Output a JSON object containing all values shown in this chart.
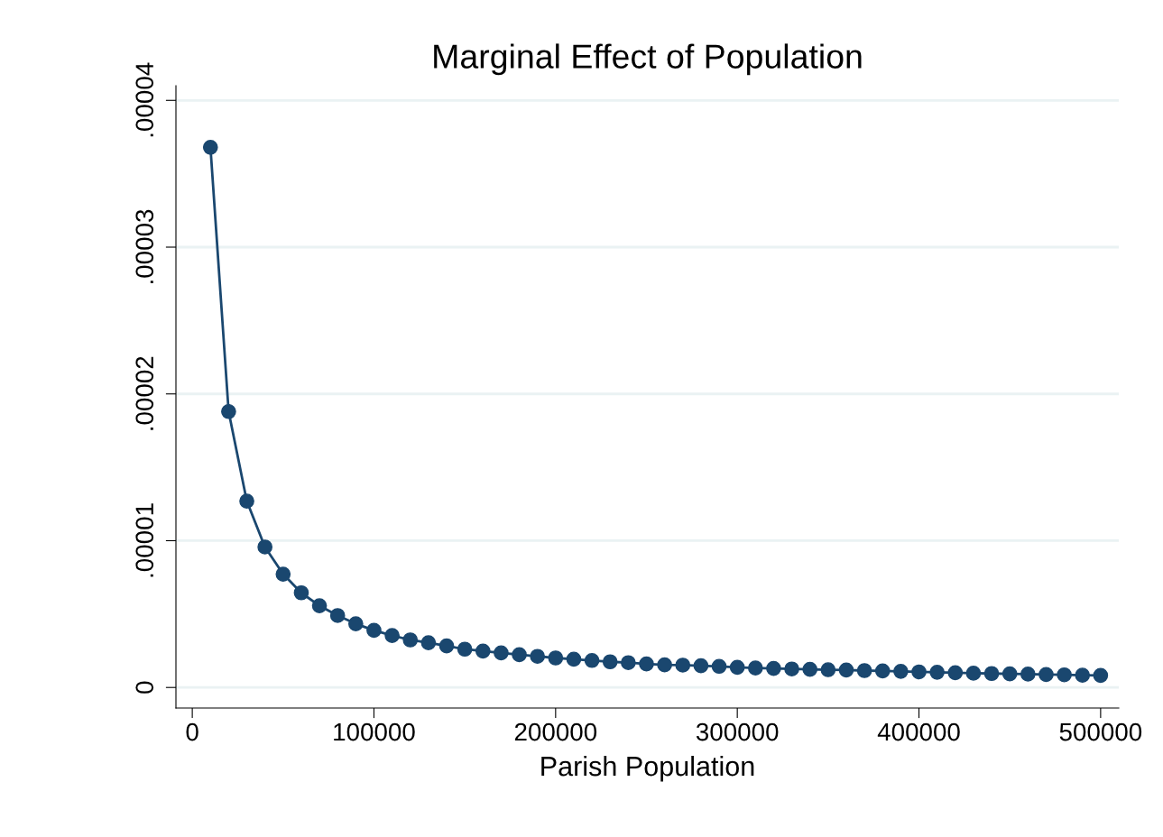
{
  "chart_data": {
    "type": "line",
    "title": "Marginal Effect of Population",
    "xlabel": "Parish Population",
    "x": [
      10000,
      20000,
      30000,
      40000,
      50000,
      60000,
      70000,
      80000,
      90000,
      100000,
      110000,
      120000,
      130000,
      140000,
      150000,
      160000,
      170000,
      180000,
      190000,
      200000,
      210000,
      220000,
      230000,
      240000,
      250000,
      260000,
      270000,
      280000,
      290000,
      300000,
      310000,
      320000,
      330000,
      340000,
      350000,
      360000,
      370000,
      380000,
      390000,
      400000,
      410000,
      420000,
      430000,
      440000,
      450000,
      460000,
      470000,
      480000,
      490000,
      500000
    ],
    "series": [
      {
        "color": "#1a476f",
        "values": [
          3.68e-05,
          1.88e-05,
          1.27e-05,
          9.57e-06,
          7.72e-06,
          6.45e-06,
          5.57e-06,
          4.9e-06,
          4.34e-06,
          3.89e-06,
          3.54e-06,
          3.24e-06,
          3.05e-06,
          2.83e-06,
          2.61e-06,
          2.48e-06,
          2.36e-06,
          2.23e-06,
          2.12e-06,
          2.01e-06,
          1.93e-06,
          1.84e-06,
          1.75e-06,
          1.69e-06,
          1.6e-06,
          1.54e-06,
          1.52e-06,
          1.48e-06,
          1.44e-06,
          1.37e-06,
          1.33e-06,
          1.3e-06,
          1.26e-06,
          1.23e-06,
          1.21e-06,
          1.19e-06,
          1.15e-06,
          1.13e-06,
          1.1e-06,
          1.06e-06,
          1.04e-06,
          1e-06,
          9.7e-07,
          9.5e-07,
          9.3e-07,
          9.1e-07,
          8.8e-07,
          8.6e-07,
          8.4e-07,
          8.2e-07
        ]
      }
    ],
    "xlim": [
      -9000,
      510000
    ],
    "xticks": [
      0,
      100000,
      200000,
      300000,
      400000,
      500000
    ],
    "ylim": [
      -1.4e-06,
      4.1e-05
    ],
    "yticks": [
      {
        "value": 0,
        "label": "0"
      },
      {
        "value": 1e-05,
        "label": ".00001"
      },
      {
        "value": 2e-05,
        "label": ".00002"
      },
      {
        "value": 3e-05,
        "label": ".00003"
      },
      {
        "value": 4e-05,
        "label": ".00004"
      }
    ],
    "grid": "y",
    "marker": "circle",
    "line_style": "solid"
  }
}
